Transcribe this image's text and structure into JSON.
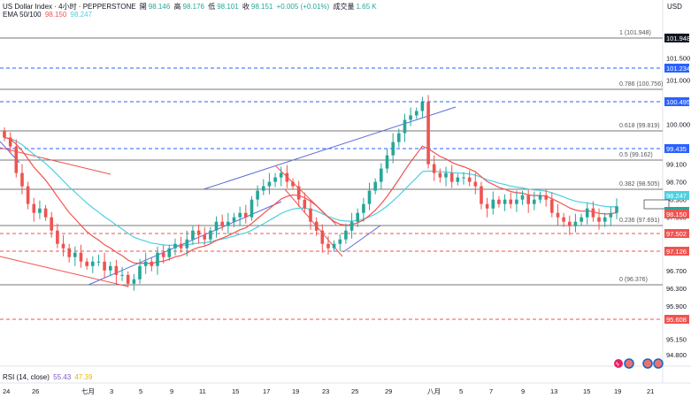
{
  "header": {
    "symbol": "US Dollar Index · 4小时 · PEPPERSTONE",
    "open_label": "開",
    "open": "98.146",
    "high_label": "高",
    "high": "98.176",
    "low_label": "低",
    "low": "98.101",
    "close_label": "收",
    "close": "98.151",
    "change": "+0.005 (+0.01%)",
    "volume_label": "成交量",
    "volume": "1.65 K",
    "currency": "USD"
  },
  "ema": {
    "label": "EMA 50/100",
    "v1": "98.150",
    "v2": "98.247"
  },
  "rsi": {
    "label": "RSI (14, close)",
    "v1": "55.43",
    "v2": "47.39"
  },
  "colors": {
    "up": "#26a69a",
    "down": "#ef5350",
    "ema_fast": "#ef5350",
    "ema_slow": "#4dd0e1",
    "trend": "#5b6bd9",
    "fib": "#555555",
    "blue_dash": "#2962ff",
    "red_dash": "#ef5350"
  },
  "price_axis": {
    "ticks": [
      "101.500",
      "101.000",
      "100.000",
      "99.100",
      "98.700",
      "98.300",
      "97.900",
      "97.500",
      "97.100",
      "96.700",
      "96.300",
      "95.900",
      "95.150",
      "94.800"
    ]
  },
  "price_tags": [
    {
      "text": "101.948",
      "color": "#131722"
    },
    {
      "text": "101.234",
      "color": "#2962ff"
    },
    {
      "text": "100.495",
      "color": "#2962ff"
    },
    {
      "text": "99.435",
      "color": "#2962ff"
    },
    {
      "text": "98.247",
      "color": "#4dd0e1"
    },
    {
      "text": "USDX",
      "color": "#131722"
    },
    {
      "text": "98.151",
      "color": "#26a69a"
    },
    {
      "text": "98.150",
      "color": "#ef5350"
    },
    {
      "text": "97.502",
      "color": "#ef5350"
    },
    {
      "text": "97.126",
      "color": "#ef5350"
    },
    {
      "text": "95.608",
      "color": "#ef5350"
    }
  ],
  "fib_labels": [
    "1 (101.948)",
    "0.786 (100.756)",
    "0.618 (99.819)",
    "0.5 (99.162)",
    "0.382 (98.505)",
    "0.236 (97.691)",
    "0 (96.376)"
  ],
  "time_axis": [
    "24",
    "26",
    "七月",
    "3",
    "5",
    "9",
    "11",
    "15",
    "17",
    "19",
    "23",
    "25",
    "29",
    "八月",
    "5",
    "7",
    "9",
    "13",
    "15",
    "19",
    "21"
  ],
  "chart_data": {
    "type": "candlestick",
    "symbol": "USDX",
    "timeframe": "4h",
    "ylim": [
      94.8,
      102.2
    ],
    "close_approx": [
      99.7,
      99.5,
      98.9,
      98.6,
      98.2,
      98.0,
      98.1,
      97.9,
      97.6,
      97.3,
      97.2,
      97.0,
      97.1,
      96.9,
      96.8,
      96.9,
      96.9,
      96.7,
      96.8,
      96.6,
      96.6,
      96.4,
      96.5,
      96.8,
      96.9,
      96.8,
      97.1,
      97.0,
      97.2,
      97.3,
      97.2,
      97.4,
      97.6,
      97.5,
      97.4,
      97.6,
      97.8,
      97.7,
      97.8,
      97.9,
      98.0,
      97.9,
      98.3,
      98.5,
      98.6,
      98.7,
      98.8,
      98.9,
      98.7,
      98.6,
      98.3,
      98.1,
      97.8,
      97.6,
      97.3,
      97.2,
      97.3,
      97.4,
      97.6,
      97.8,
      98.0,
      98.2,
      98.5,
      98.7,
      99.0,
      99.3,
      99.6,
      99.8,
      100.1,
      100.2,
      100.3,
      100.5,
      99.1,
      98.9,
      98.8,
      98.9,
      98.7,
      98.8,
      98.8,
      98.7,
      98.6,
      98.2,
      98.1,
      98.3,
      98.2,
      98.3,
      98.2,
      98.3,
      98.4,
      98.2,
      98.3,
      98.4,
      98.3,
      98.0,
      97.9,
      97.8,
      97.7,
      97.8,
      97.9,
      98.1,
      97.9,
      97.8,
      97.9,
      98.0,
      98.15
    ]
  }
}
